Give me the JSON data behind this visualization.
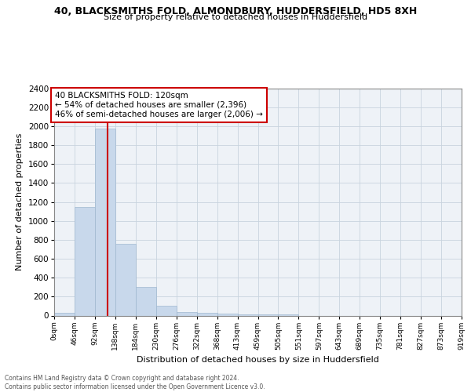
{
  "title_line1": "40, BLACKSMITHS FOLD, ALMONDBURY, HUDDERSFIELD, HD5 8XH",
  "title_line2": "Size of property relative to detached houses in Huddersfield",
  "xlabel": "Distribution of detached houses by size in Huddersfield",
  "ylabel": "Number of detached properties",
  "bin_width": 46,
  "num_bins": 20,
  "bar_values": [
    30,
    1150,
    1970,
    760,
    300,
    105,
    40,
    30,
    20,
    15,
    15,
    15,
    0,
    0,
    0,
    0,
    0,
    0,
    0,
    0
  ],
  "bar_color": "#c8d8eb",
  "bar_edge_color": "#a0b8d0",
  "grid_color": "#c8d4de",
  "background_color": "#eef2f7",
  "ylim": [
    0,
    2400
  ],
  "yticks": [
    0,
    200,
    400,
    600,
    800,
    1000,
    1200,
    1400,
    1600,
    1800,
    2000,
    2200,
    2400
  ],
  "property_size": 120,
  "red_line_color": "#cc0000",
  "annotation_line1": "40 BLACKSMITHS FOLD: 120sqm",
  "annotation_line2": "← 54% of detached houses are smaller (2,396)",
  "annotation_line3": "46% of semi-detached houses are larger (2,006) →",
  "annotation_box_color": "#cc0000",
  "footer_text": "Contains HM Land Registry data © Crown copyright and database right 2024.\nContains public sector information licensed under the Open Government Licence v3.0.",
  "x_tick_labels": [
    "0sqm",
    "46sqm",
    "92sqm",
    "138sqm",
    "184sqm",
    "230sqm",
    "276sqm",
    "322sqm",
    "368sqm",
    "413sqm",
    "459sqm",
    "505sqm",
    "551sqm",
    "597sqm",
    "643sqm",
    "689sqm",
    "735sqm",
    "781sqm",
    "827sqm",
    "873sqm",
    "919sqm"
  ]
}
